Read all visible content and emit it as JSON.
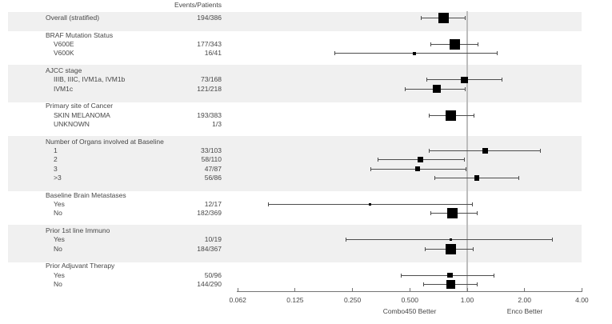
{
  "column_header": "Events/Patients",
  "colors": {
    "background": "#ffffff",
    "band": "#f0f0f0",
    "marker": "#000000",
    "ci_line": "#4d4d4d",
    "reference_line": "#bdbdbd",
    "axis": "#757575",
    "text": "#474747"
  },
  "chart_data": {
    "type": "forest",
    "title": "",
    "x_axis": {
      "scale": "log2",
      "range": [
        0.0625,
        4.0
      ],
      "reference_line": 1.0,
      "ticks": [
        {
          "label": "0.062",
          "value": 0.0625
        },
        {
          "label": "0.125",
          "value": 0.125
        },
        {
          "label": "0.250",
          "value": 0.25
        },
        {
          "label": "0.500",
          "value": 0.5
        },
        {
          "label": "1.00",
          "value": 1.0
        },
        {
          "label": "2.00",
          "value": 2.0
        },
        {
          "label": "4.00",
          "value": 4.0
        }
      ],
      "left_label": "Combo450 Better",
      "right_label": "Enco Better"
    },
    "groups": [
      {
        "title": "",
        "shaded": true,
        "rows": [
          {
            "label": "Overall (stratified)",
            "events_patients": "194/386",
            "hr": 0.75,
            "lo": 0.57,
            "hi": 0.98
          }
        ]
      },
      {
        "title": "BRAF Mutation Status",
        "shaded": false,
        "rows": [
          {
            "label": "V600E",
            "events_patients": "177/343",
            "hr": 0.86,
            "lo": 0.64,
            "hi": 1.15
          },
          {
            "label": "V600K",
            "events_patients": "16/41",
            "hr": 0.53,
            "lo": 0.2,
            "hi": 1.44
          }
        ]
      },
      {
        "title": "AJCC stage",
        "shaded": true,
        "rows": [
          {
            "label": "IIIB, IIIC, IVM1a, IVM1b",
            "events_patients": "73/168",
            "hr": 0.97,
            "lo": 0.61,
            "hi": 1.53
          },
          {
            "label": "IVM1c",
            "events_patients": "121/218",
            "hr": 0.69,
            "lo": 0.47,
            "hi": 0.98
          }
        ]
      },
      {
        "title": "Primary site of Cancer",
        "shaded": false,
        "rows": [
          {
            "label": "SKIN MELANOMA",
            "events_patients": "193/383",
            "hr": 0.82,
            "lo": 0.63,
            "hi": 1.09
          },
          {
            "label": "UNKNOWN",
            "events_patients": "1/3",
            "hr": null,
            "lo": null,
            "hi": null
          }
        ]
      },
      {
        "title": "Number of Organs involved at Baseline",
        "shaded": true,
        "rows": [
          {
            "label": "1",
            "events_patients": "33/103",
            "hr": 1.24,
            "lo": 0.63,
            "hi": 2.43
          },
          {
            "label": "2",
            "events_patients": "58/110",
            "hr": 0.57,
            "lo": 0.34,
            "hi": 0.97
          },
          {
            "label": "3",
            "events_patients": "47/87",
            "hr": 0.55,
            "lo": 0.31,
            "hi": 0.99
          },
          {
            "label": ">3",
            "events_patients": "56/86",
            "hr": 1.12,
            "lo": 0.67,
            "hi": 1.88
          }
        ]
      },
      {
        "title": "Baseline Brain Metastases",
        "shaded": false,
        "rows": [
          {
            "label": "Yes",
            "events_patients": "12/17",
            "hr": 0.31,
            "lo": 0.09,
            "hi": 1.07
          },
          {
            "label": "No",
            "events_patients": "182/369",
            "hr": 0.84,
            "lo": 0.64,
            "hi": 1.13
          }
        ]
      },
      {
        "title": "Prior 1st line Immuno",
        "shaded": true,
        "rows": [
          {
            "label": "Yes",
            "events_patients": "10/19",
            "hr": 0.82,
            "lo": 0.23,
            "hi": 2.8
          },
          {
            "label": "No",
            "events_patients": "184/367",
            "hr": 0.82,
            "lo": 0.6,
            "hi": 1.08
          }
        ]
      },
      {
        "title": "Prior Adjuvant Therapy",
        "shaded": false,
        "rows": [
          {
            "label": "Yes",
            "events_patients": "50/96",
            "hr": 0.81,
            "lo": 0.45,
            "hi": 1.39
          },
          {
            "label": "No",
            "events_patients": "144/290",
            "hr": 0.82,
            "lo": 0.59,
            "hi": 1.13
          }
        ]
      }
    ]
  }
}
